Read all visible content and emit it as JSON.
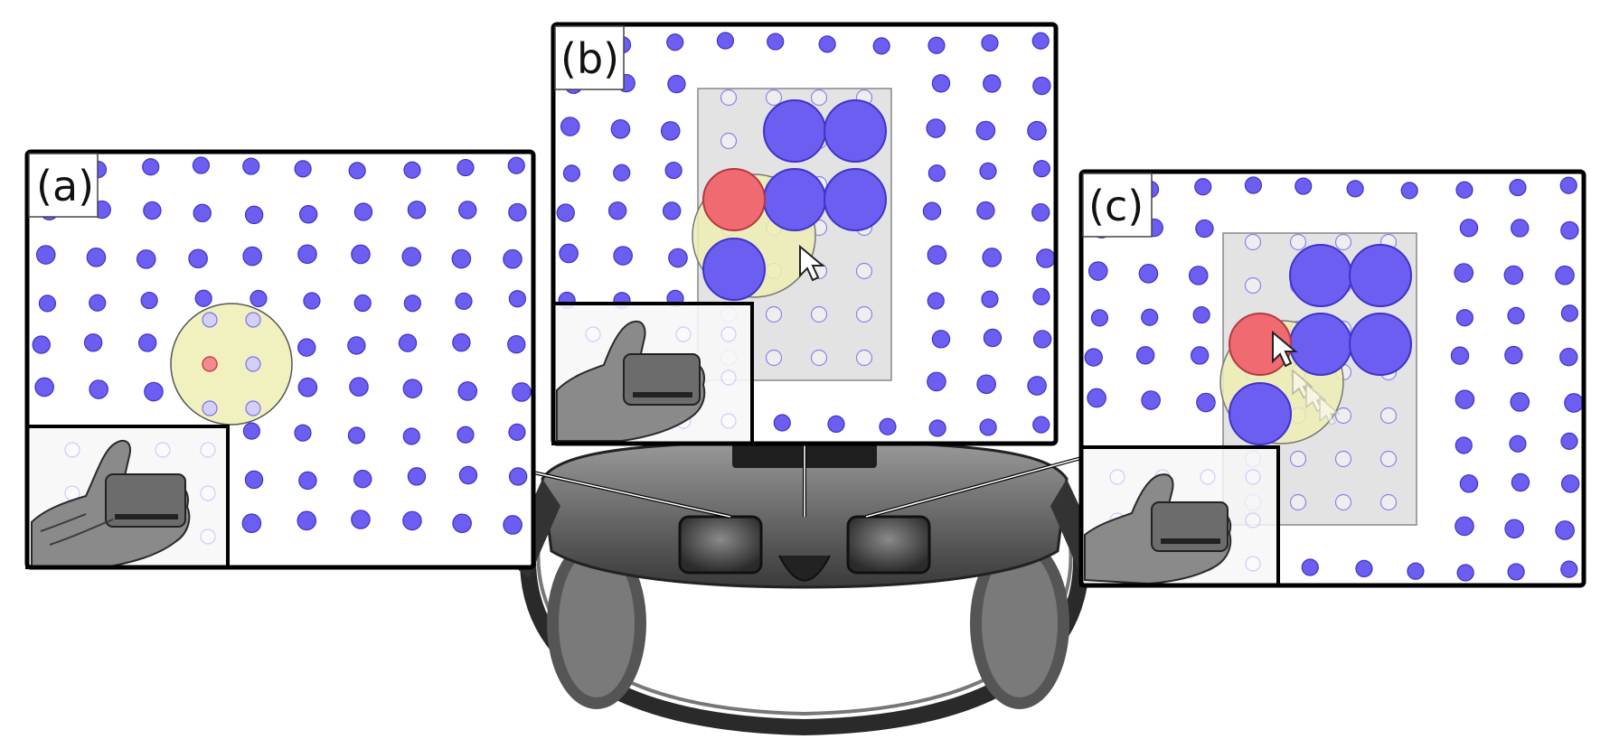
{
  "panels": [
    {
      "id": "a",
      "label": "(a)"
    },
    {
      "id": "b",
      "label": "(b)"
    },
    {
      "id": "c",
      "label": "(c)"
    }
  ],
  "colors": {
    "dot": "#6b5ef0",
    "dot_stroke": "#3f33c9",
    "faded_dot": "#cfcbfb",
    "target": "#f06a72",
    "cursor_area": "#eeeeb4",
    "selection_box": "#e3e3e3",
    "frame": "#000000"
  },
  "icons": [
    "hand-holding-phone-icon",
    "vr-headset-icon",
    "mouse-cursor-icon"
  ]
}
